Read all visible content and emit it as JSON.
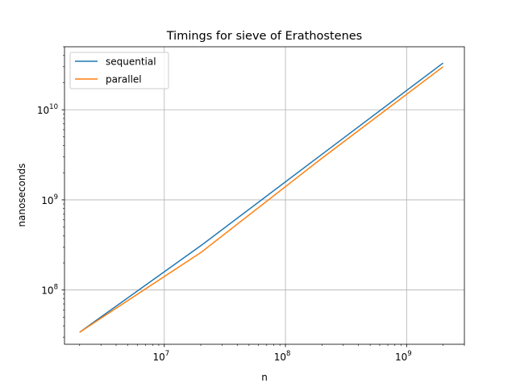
{
  "chart_data": {
    "type": "line",
    "title": "Timings for sieve of Erathostenes",
    "xlabel": "n",
    "ylabel": "nanoseconds",
    "xscale": "log",
    "yscale": "log",
    "xlim": [
      1500000,
      3000000000
    ],
    "ylim": [
      25000000,
      50000000000
    ],
    "grid": true,
    "legend": "upper left",
    "x": [
      2000000,
      20000000,
      200000000,
      2000000000
    ],
    "series": [
      {
        "name": "sequential",
        "color": "#1f77b4",
        "values": [
          34000000,
          310000000,
          3200000000,
          33000000000
        ]
      },
      {
        "name": "parallel",
        "color": "#ff7f0e",
        "values": [
          34000000,
          260000000,
          2900000000,
          30000000000
        ]
      }
    ],
    "xticks": [
      {
        "value": 10000000,
        "base": "10",
        "exp": "7"
      },
      {
        "value": 100000000,
        "base": "10",
        "exp": "8"
      },
      {
        "value": 1000000000,
        "base": "10",
        "exp": "9"
      }
    ],
    "yticks": [
      {
        "value": 100000000,
        "base": "10",
        "exp": "8"
      },
      {
        "value": 1000000000,
        "base": "10",
        "exp": "9"
      },
      {
        "value": 10000000000,
        "base": "10",
        "exp": "10"
      }
    ]
  }
}
